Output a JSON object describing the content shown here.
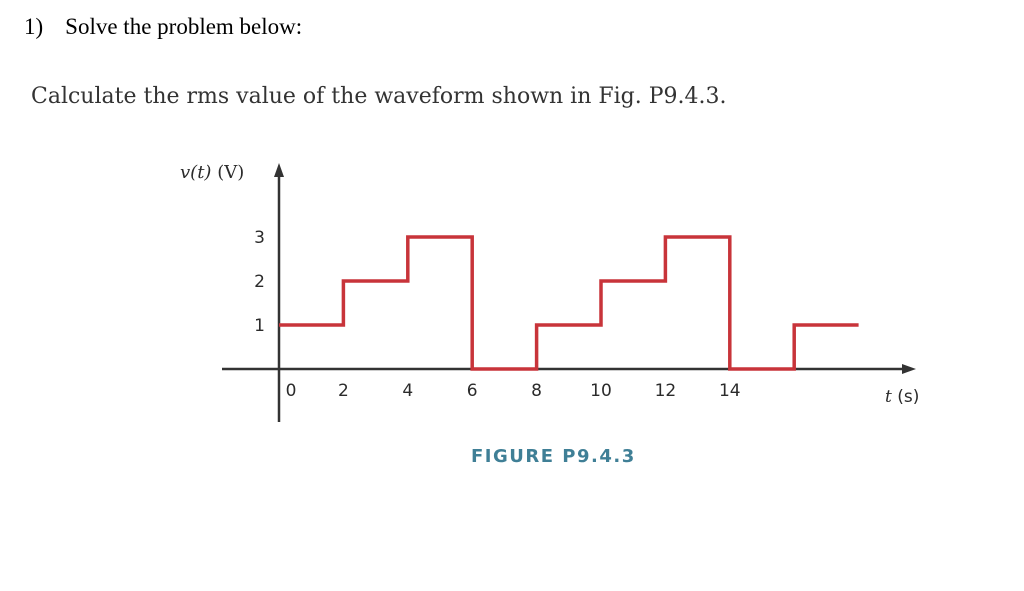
{
  "question": {
    "number": "1)",
    "instruction": "Solve the problem below:"
  },
  "problem": {
    "text": "Calculate the rms value of the waveform shown in Fig. P9.4.3."
  },
  "figure": {
    "caption": "FIGURE P9.4.3",
    "colors": {
      "waveform": "#c8343a",
      "axes": "#333333",
      "caption": "#3f7f96"
    }
  },
  "chart_data": {
    "type": "line",
    "step": true,
    "ylabel_var": "v(t)",
    "ylabel_unit": "(V)",
    "xlabel_var": "t",
    "xlabel_unit": "(s)",
    "y_ticks": [
      "1",
      "2",
      "3"
    ],
    "x_ticks": [
      "0",
      "2",
      "4",
      "6",
      "8",
      "10",
      "12",
      "14"
    ],
    "xlim": [
      0,
      19.6
    ],
    "ylim": [
      0,
      3
    ],
    "grid": false,
    "series": [
      {
        "t": [
          0,
          2,
          2,
          4,
          4,
          6,
          6,
          8,
          8,
          10,
          10,
          12,
          12,
          14,
          14,
          16,
          16,
          18
        ],
        "v": [
          1,
          1,
          2,
          2,
          3,
          3,
          0,
          0,
          1,
          1,
          2,
          2,
          3,
          3,
          0,
          0,
          1,
          1
        ]
      }
    ]
  }
}
